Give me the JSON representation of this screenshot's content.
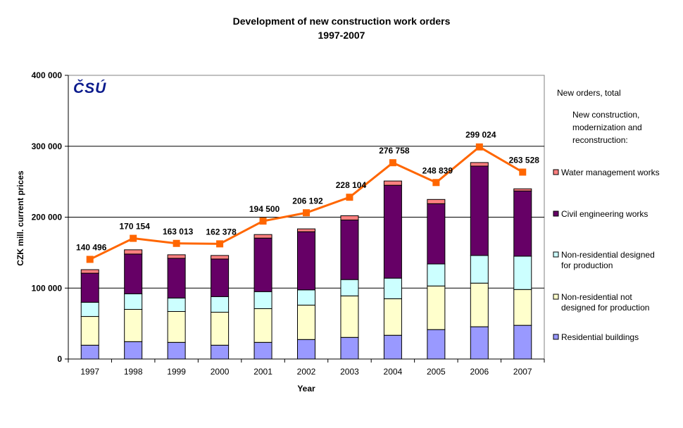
{
  "chart_data": {
    "type": "bar",
    "stacked": true,
    "title": "Development of new construction work orders",
    "subtitle": "1997-2007",
    "xlabel": "Year",
    "ylabel": "CZK mill. current prices",
    "ylim": [
      0,
      400000
    ],
    "yticks": [
      "0",
      "100 000",
      "200 000",
      "300 000",
      "400 000"
    ],
    "grid": true,
    "legend_position": "right",
    "legend_heading": "New construction, modernization and reconstruction:",
    "logo": "ČSÚ",
    "categories": [
      "1997",
      "1998",
      "1999",
      "2000",
      "2001",
      "2002",
      "2003",
      "2004",
      "2005",
      "2006",
      "2007"
    ],
    "series": [
      {
        "name": "Residential buildings",
        "color": "#9999FF",
        "values": [
          19500,
          24500,
          23500,
          19500,
          23500,
          27500,
          30500,
          33500,
          41500,
          45500,
          47500
        ]
      },
      {
        "name": "Non-residential not designed for production",
        "color": "#FFFFCC",
        "values": [
          40500,
          45500,
          43500,
          46500,
          47500,
          48500,
          58500,
          51500,
          61500,
          61500,
          50500
        ]
      },
      {
        "name": "Non-residential designed for production",
        "color": "#CCFFFF",
        "values": [
          20000,
          22000,
          19000,
          22000,
          24000,
          21500,
          23000,
          29000,
          31000,
          39000,
          47000
        ]
      },
      {
        "name": "Civil engineering works",
        "color": "#660066",
        "values": [
          41000,
          56000,
          56000,
          53000,
          75500,
          82000,
          84000,
          131000,
          85000,
          126000,
          92000
        ]
      },
      {
        "name": "Water management works",
        "color": "#FF8080",
        "values": [
          5000,
          6000,
          5000,
          5000,
          5000,
          4000,
          6000,
          6000,
          6000,
          5000,
          3000
        ]
      }
    ],
    "line": {
      "name": "New orders, total",
      "color": "#FF6600",
      "values": [
        140496,
        170154,
        163013,
        162378,
        194500,
        206192,
        228104,
        276758,
        248839,
        299024,
        263528
      ],
      "labels": [
        "140 496",
        "170 154",
        "163 013",
        "162 378",
        "194 500",
        "206 192",
        "228 104",
        "276 758",
        "248 839",
        "299 024",
        "263 528"
      ]
    }
  }
}
